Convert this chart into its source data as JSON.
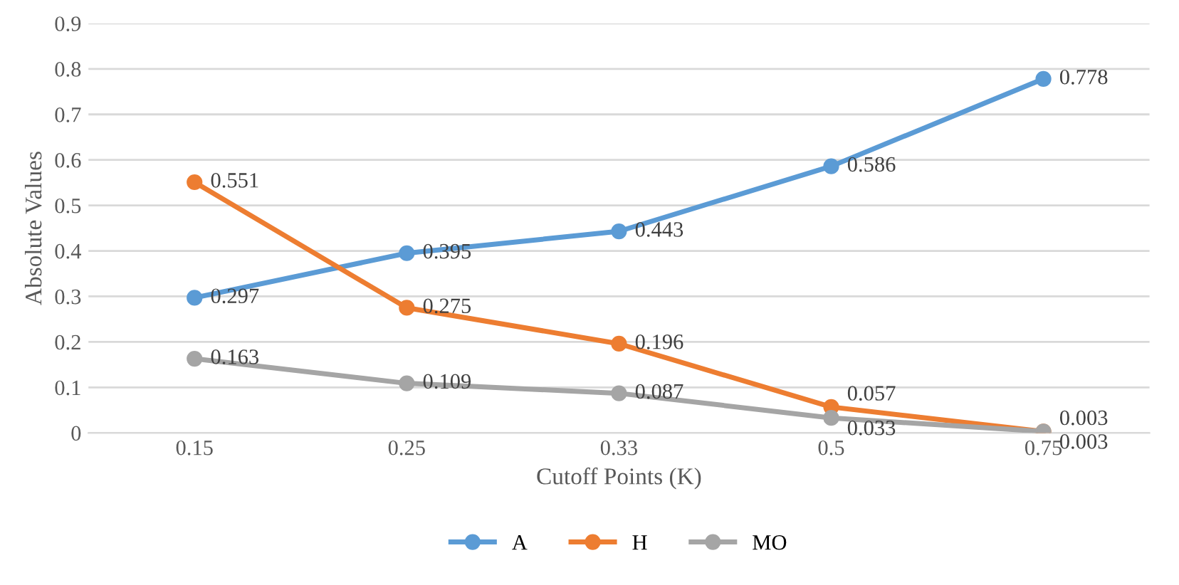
{
  "chart_data": {
    "type": "line",
    "xlabel": "Cutoff Points (K)",
    "ylabel": "Absolute Values",
    "categories": [
      "0.15",
      "0.25",
      "0.33",
      "0.5",
      "0.75"
    ],
    "series": [
      {
        "name": "A",
        "color": "#5b9bd5",
        "values": [
          0.297,
          0.395,
          0.443,
          0.586,
          0.778
        ]
      },
      {
        "name": "H",
        "color": "#ed7d31",
        "values": [
          0.551,
          0.275,
          0.196,
          0.057,
          0.003
        ]
      },
      {
        "name": "MO",
        "color": "#a5a5a5",
        "values": [
          0.163,
          0.109,
          0.087,
          0.033,
          0.003
        ]
      }
    ],
    "ylim": [
      0,
      0.9
    ],
    "yticks": [
      0,
      0.1,
      0.2,
      0.3,
      0.4,
      0.5,
      0.6,
      0.7,
      0.8,
      0.9
    ],
    "grid": "y",
    "legend": "bottom",
    "marker": "circle",
    "line_style": "solid",
    "data_labels": true
  }
}
